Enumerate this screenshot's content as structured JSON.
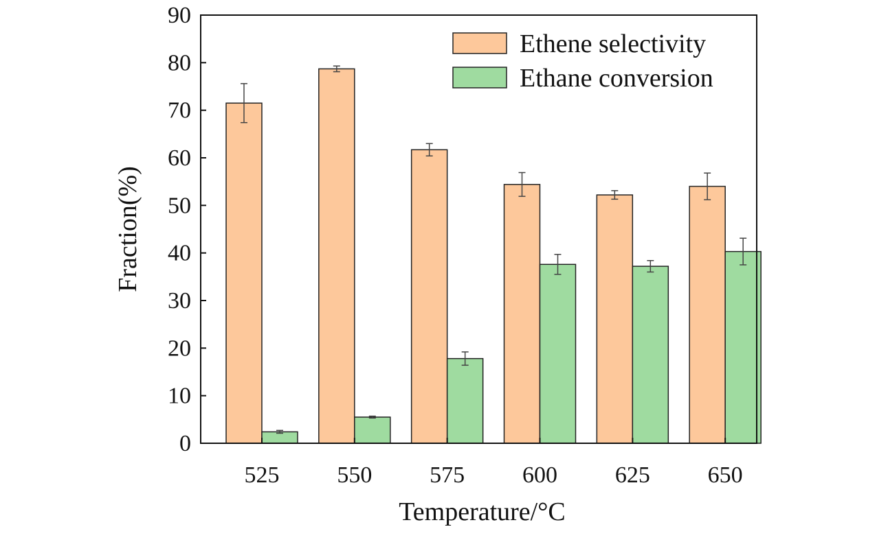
{
  "chart_data": {
    "type": "bar",
    "title": "",
    "xlabel": "Temperature/°C",
    "ylabel": "Fraction(%)",
    "categories": [
      "525",
      "550",
      "575",
      "600",
      "625",
      "650"
    ],
    "ylim": [
      0,
      90
    ],
    "yticks": [
      0,
      10,
      20,
      30,
      40,
      50,
      60,
      70,
      80,
      90
    ],
    "legend_position": "top-right",
    "grid": false,
    "series": [
      {
        "name": "Ethene selectivity",
        "color": "#fdc89b",
        "values": [
          71.5,
          78.7,
          61.7,
          54.4,
          52.2,
          54.0
        ],
        "errors": [
          4.1,
          0.6,
          1.3,
          2.5,
          0.9,
          2.8
        ]
      },
      {
        "name": "Ethane conversion",
        "color": "#9fdba0",
        "values": [
          2.4,
          5.5,
          17.8,
          37.6,
          37.2,
          40.3
        ],
        "errors": [
          0.3,
          0.2,
          1.4,
          2.1,
          1.2,
          2.8
        ]
      }
    ]
  }
}
